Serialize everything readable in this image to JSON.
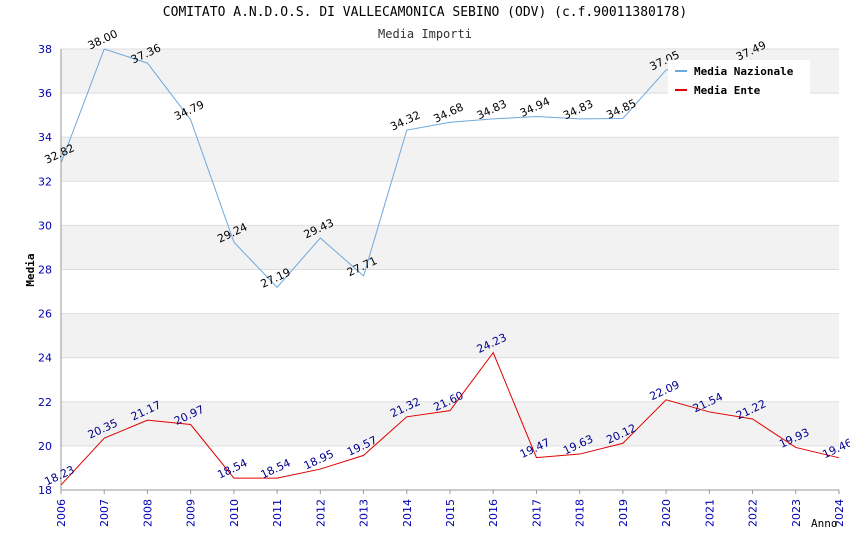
{
  "chart_data": {
    "type": "line",
    "title": "COMITATO A.N.D.O.S. DI VALLECAMONICA SEBINO (ODV) (c.f.90011380178)",
    "subtitle": "Media Importi",
    "xlabel": "Anno",
    "ylabel": "Media",
    "ylim": [
      18,
      38
    ],
    "yticks": [
      "18",
      "20",
      "22",
      "24",
      "26",
      "28",
      "30",
      "32",
      "34",
      "36",
      "38"
    ],
    "grid": true,
    "legend_position": "top-right",
    "categories": [
      "2006",
      "2007",
      "2008",
      "2009",
      "2010",
      "2011",
      "2012",
      "2013",
      "2014",
      "2015",
      "2016",
      "2017",
      "2018",
      "2019",
      "2020",
      "2021",
      "2022",
      "2023",
      "2024"
    ],
    "series": [
      {
        "name": "Media Nazionale",
        "color": "#6fa8dc",
        "values": [
          32.82,
          38.0,
          37.36,
          34.79,
          29.24,
          27.19,
          29.43,
          27.71,
          34.32,
          34.68,
          34.83,
          34.94,
          34.83,
          34.85,
          37.05,
          null,
          37.49,
          null,
          null
        ],
        "labels": [
          "32.82",
          "38.00",
          "37.36",
          "34.79",
          "29.24",
          "27.19",
          "29.43",
          "27.71",
          "34.32",
          "34.68",
          "34.83",
          "34.94",
          "34.83",
          "34.85",
          "37.05",
          "",
          "37.49",
          "",
          ""
        ]
      },
      {
        "name": "Media Ente",
        "color": "#e00000",
        "values": [
          18.23,
          20.35,
          21.17,
          20.97,
          18.54,
          18.54,
          18.95,
          19.57,
          21.32,
          21.6,
          24.23,
          19.47,
          19.63,
          20.12,
          22.09,
          21.54,
          21.22,
          19.93,
          19.46
        ],
        "labels": [
          "18.23",
          "20.35",
          "21.17",
          "20.97",
          "18.54",
          "18.54",
          "18.95",
          "19.57",
          "21.32",
          "21.60",
          "24.23",
          "19.47",
          "19.63",
          "20.12",
          "22.09",
          "21.54",
          "21.22",
          "19.93",
          "19.46"
        ]
      }
    ]
  }
}
